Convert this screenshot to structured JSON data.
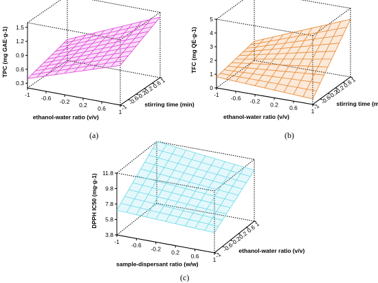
{
  "captions": {
    "a": "(a)",
    "b": "(b)",
    "c": "(c)"
  },
  "chart_data": [
    {
      "type": "surface3d",
      "panel": "(a)",
      "xlabel": "ethanol-water ratio (v/v)",
      "ylabel": "stirring time (min)",
      "zlabel": "TPC (mg GAE·g-1)",
      "x_ticks": [
        "-1",
        "-0.6",
        "-0.2",
        "0.2",
        "0.6",
        "1"
      ],
      "y_ticks": [
        "-1",
        "-0.6",
        "-0.2",
        "0.2",
        "0.6",
        "1"
      ],
      "z_ticks": [
        "0.3",
        "0.6",
        "0.9",
        "1.2",
        "1.5"
      ],
      "xlim": [
        -1,
        1
      ],
      "ylim": [
        -1,
        1
      ],
      "zlim": [
        0.2,
        1.6
      ],
      "surface_corners": {
        "x-1_y-1": 0.4,
        "x1_y-1": 1.05,
        "x-1_y1": 0.65,
        "x1_y1": 1.5
      },
      "color": "#e040d8"
    },
    {
      "type": "surface3d",
      "panel": "(b)",
      "xlabel": "ethanol-water ratio (v/v)",
      "ylabel": "stirring time (min)",
      "zlabel": "TFC (mg QE·g-1)",
      "x_ticks": [
        "-1",
        "-0.6",
        "-0.2",
        "0.2",
        "0.6",
        "1"
      ],
      "y_ticks": [
        "-1",
        "-0.6",
        "-0.2",
        "0.2",
        "0.6",
        "1"
      ],
      "z_ticks": [
        "0",
        "1",
        "2",
        "3",
        "4",
        "5"
      ],
      "xlim": [
        -1,
        1
      ],
      "ylim": [
        -1,
        1
      ],
      "zlim": [
        0,
        5
      ],
      "surface_corners": {
        "x-1_y-1": 0.8,
        "x1_y-1": 0.4,
        "x-1_y1": 1.4,
        "x1_y1": 4.2
      },
      "color": "#e8842a"
    },
    {
      "type": "surface3d",
      "panel": "(c)",
      "xlabel": "sample-dispersant ratio (w/w)",
      "ylabel": "ethanol-water ratio (v/v)",
      "zlabel": "DPPH IC50 (mg·g-1)",
      "x_ticks": [
        "-1",
        "-0.6",
        "-0.2",
        "0.2",
        "0.6",
        "1"
      ],
      "y_ticks": [
        "-1",
        "-0.6",
        "-0.2",
        "0.2",
        "0.6",
        "1"
      ],
      "z_ticks": [
        "3.8",
        "5.8",
        "7.8",
        "9.8",
        "11.8"
      ],
      "xlim": [
        -1,
        1
      ],
      "ylim": [
        -1,
        1
      ],
      "zlim": [
        3.8,
        11.8
      ],
      "surface_corners": {
        "x-1_y-1": 7.0,
        "x1_y-1": 6.4,
        "x-1_y1": 11.8,
        "x1_y1": 10.4
      },
      "color": "#6ad8e8"
    }
  ]
}
